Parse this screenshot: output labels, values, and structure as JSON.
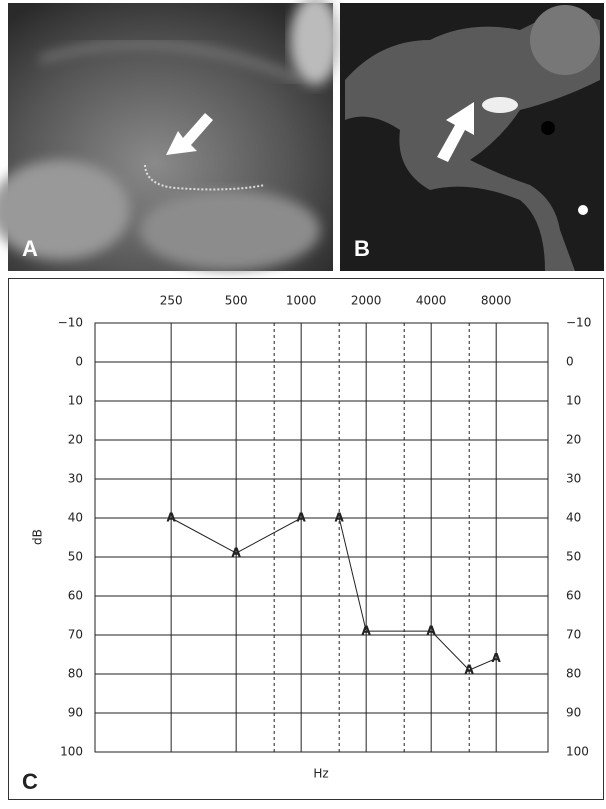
{
  "panels": {
    "a": "A",
    "b": "B"
  },
  "chart_data": {
    "type": "line",
    "panel_label": "C",
    "marker": "A",
    "x": [
      250,
      500,
      1000,
      1500,
      2000,
      4000,
      6000,
      8000
    ],
    "values": [
      40,
      49,
      40,
      40,
      69,
      69,
      79,
      76
    ],
    "color": "#222222",
    "x_label": "Hz",
    "y_label": "dB",
    "xscale": "log",
    "xlim": [
      111,
      13900
    ],
    "xticks": [
      250,
      500,
      1000,
      2000,
      4000,
      8000
    ],
    "minor_xticks": [
      750,
      1500,
      3000,
      6000
    ],
    "ylim": [
      -10,
      100
    ],
    "y_inverted": true,
    "yticks": [
      {
        "value": -10,
        "label": "−10"
      },
      0,
      10,
      20,
      30,
      40,
      50,
      60,
      70,
      80,
      90,
      100
    ],
    "grid": true
  }
}
